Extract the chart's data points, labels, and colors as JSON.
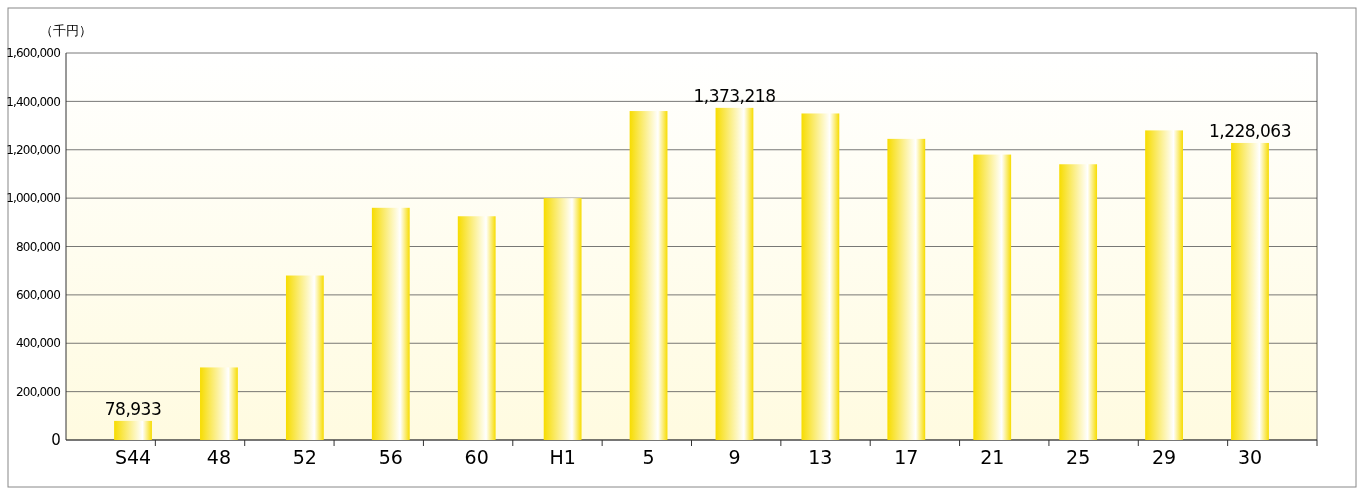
{
  "chart_data": {
    "type": "bar",
    "ylabel": "（千円）",
    "categories": [
      "S44",
      "48",
      "52",
      "56",
      "60",
      "H1",
      "5",
      "9",
      "13",
      "17",
      "21",
      "25",
      "29",
      "30"
    ],
    "values": [
      78933,
      300000,
      680000,
      960000,
      925000,
      1000000,
      1360000,
      1373218,
      1350000,
      1245000,
      1180000,
      1140000,
      1280000,
      1228063
    ],
    "value_labels": [
      "78,933",
      null,
      null,
      null,
      null,
      null,
      null,
      "1,373,218",
      null,
      null,
      null,
      null,
      null,
      "1,228,063"
    ],
    "color": "#f7dc00",
    "ylim": [
      0,
      1600000
    ],
    "yticks": [
      0,
      {
        "value": 200000,
        "label": "200,000"
      },
      {
        "value": 400000,
        "label": "400,000"
      },
      {
        "value": 600000,
        "label": "600,000"
      },
      {
        "value": 800000,
        "label": "800,000"
      },
      {
        "value": 1000000,
        "label": "1,000,000"
      },
      {
        "value": 1200000,
        "label": "1,200,000"
      },
      {
        "value": 1400000,
        "label": "1,400,000"
      },
      {
        "value": 1600000,
        "label": "1,600,000"
      }
    ],
    "grid": "y"
  }
}
